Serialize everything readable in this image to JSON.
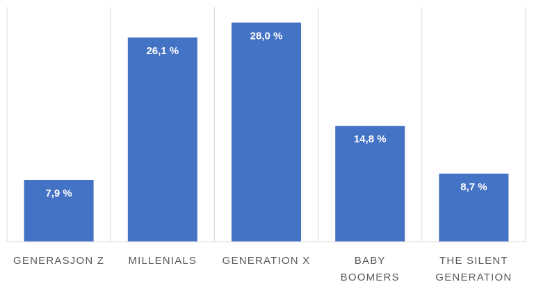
{
  "chart_data": {
    "type": "bar",
    "categories": [
      [
        "GENERASJON Z"
      ],
      [
        "MILLENIALS"
      ],
      [
        "GENERATION X"
      ],
      [
        "BABY",
        "BOOMERS"
      ],
      [
        "THE SILENT",
        "GENERATION"
      ]
    ],
    "values": [
      7.9,
      26.1,
      28.0,
      14.8,
      8.7
    ],
    "value_labels": [
      "7,9 %",
      "26,1 %",
      "28,0 %",
      "14,8 %",
      "8,7 %"
    ],
    "color": "#4472c4",
    "ylim": [
      0,
      30
    ]
  }
}
